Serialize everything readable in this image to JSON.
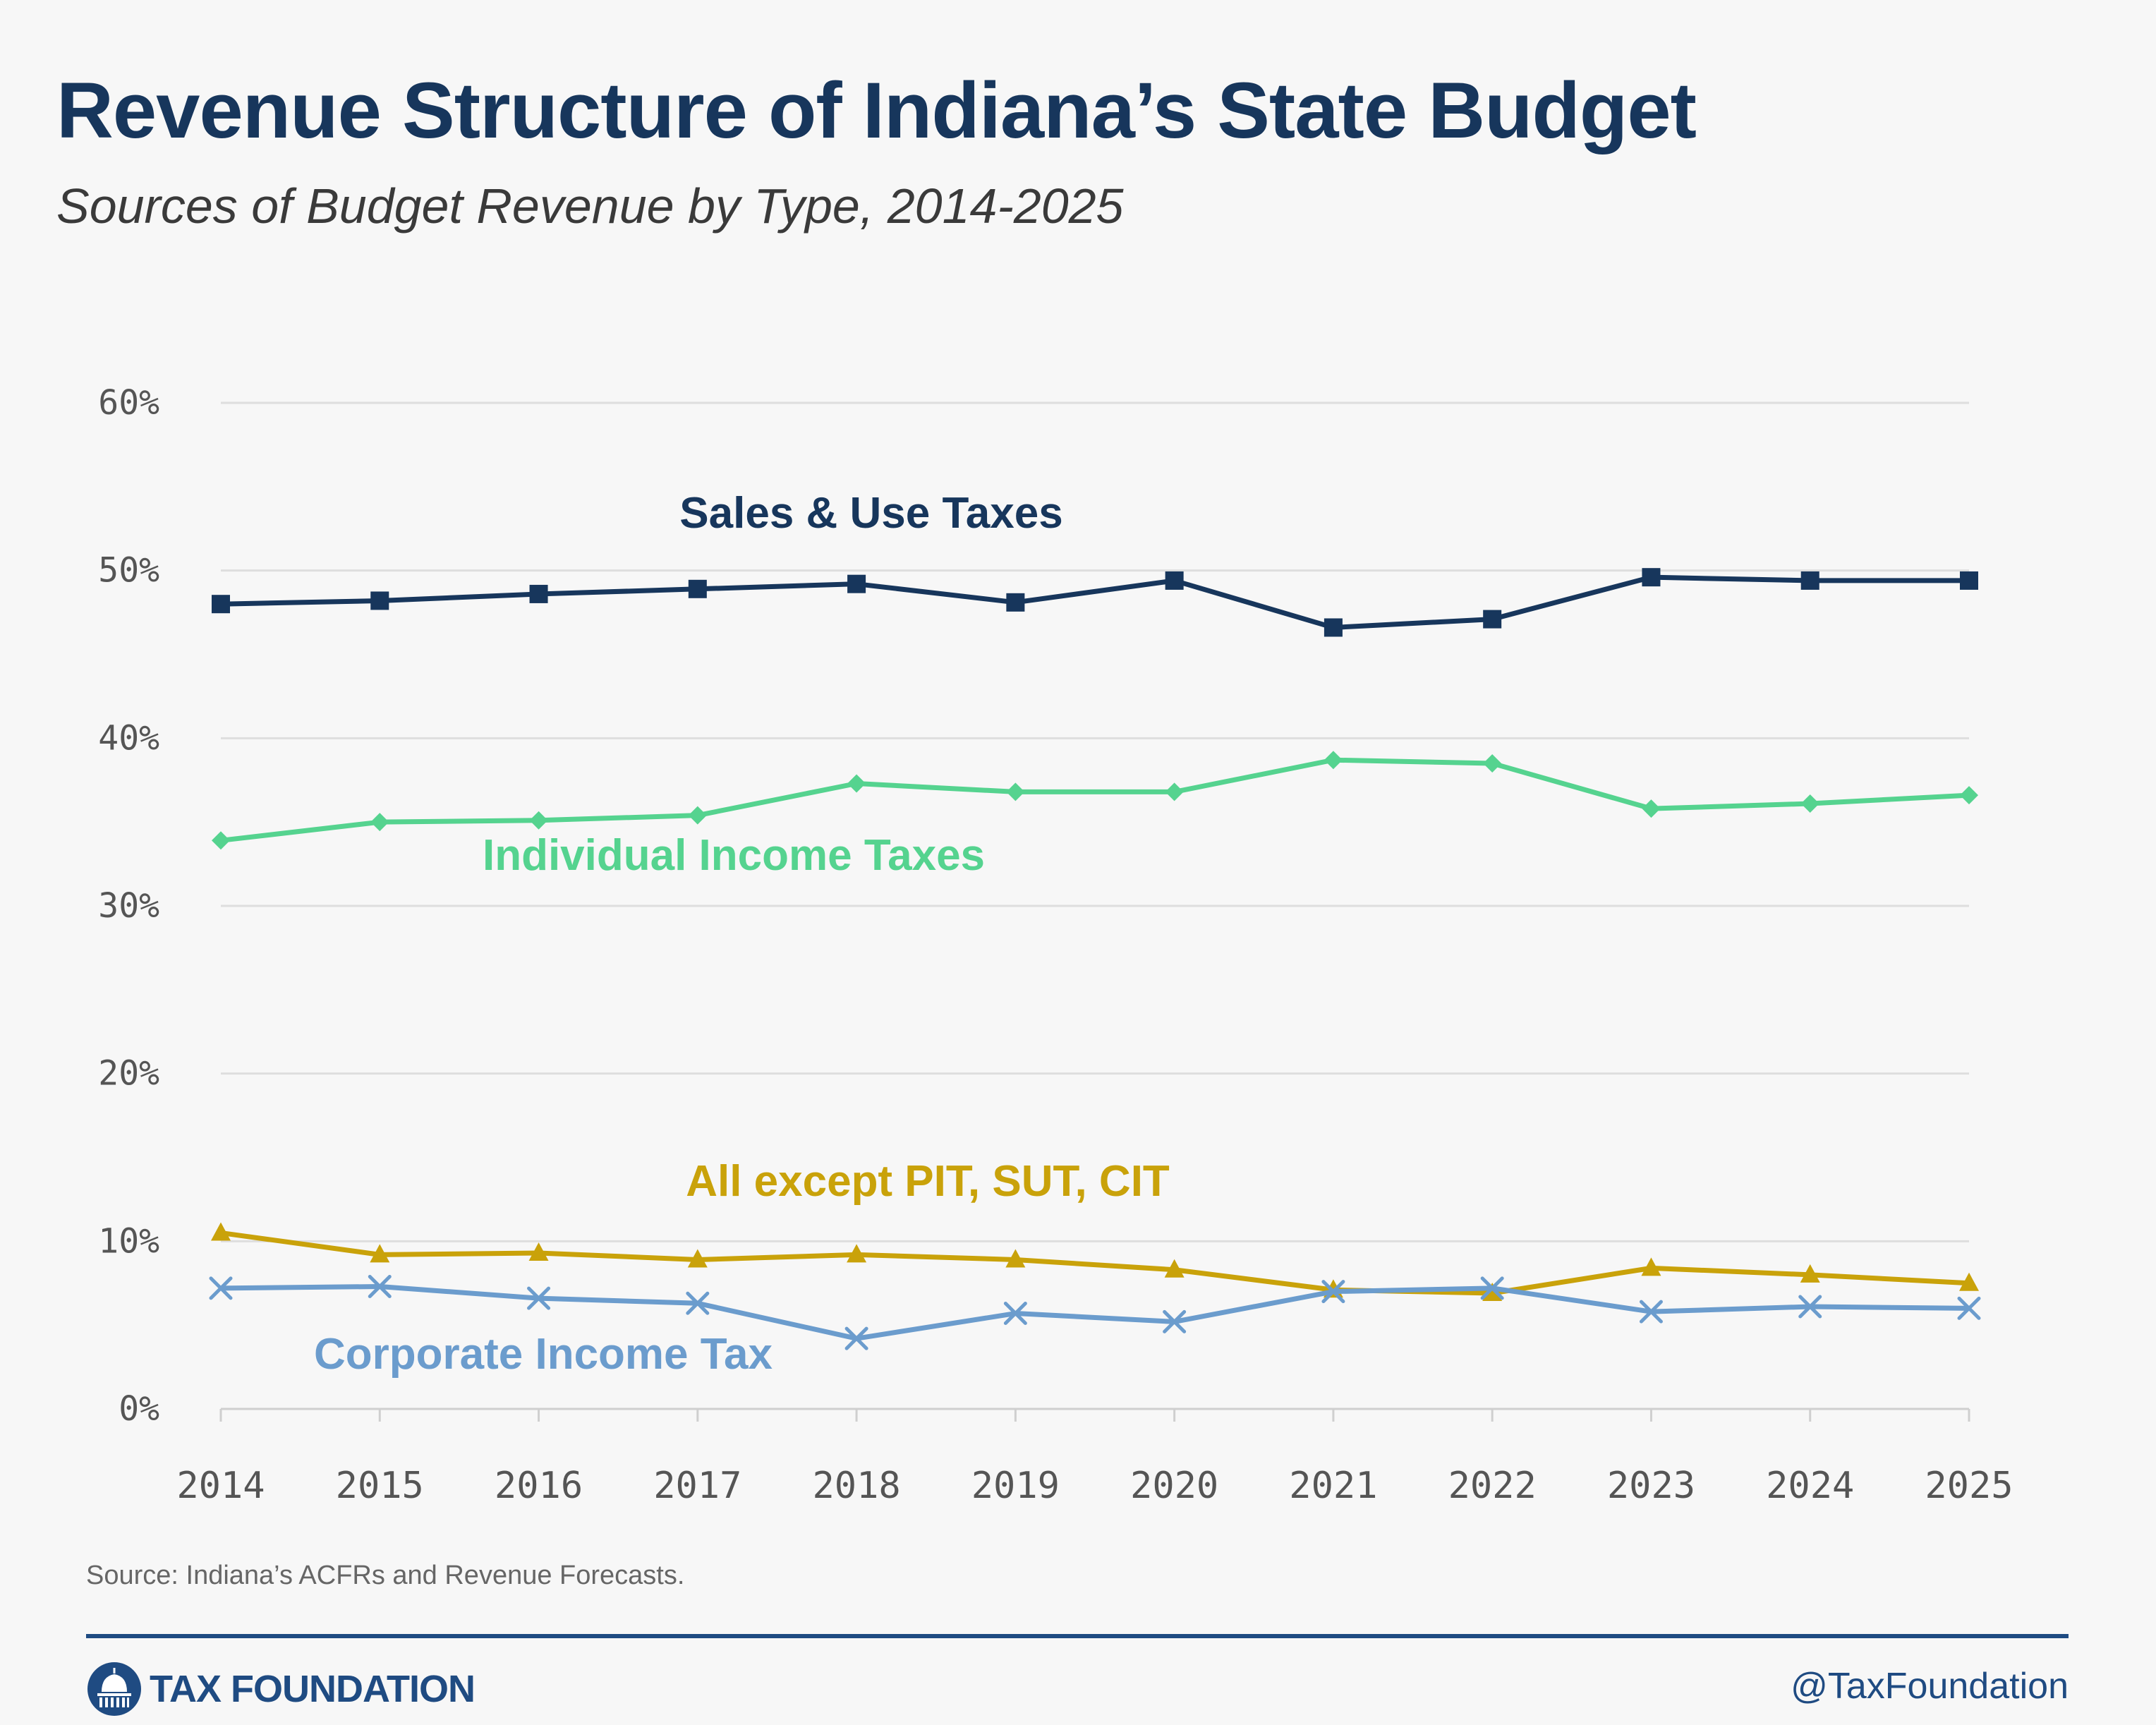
{
  "header": {
    "title": "Revenue Structure of Indiana’s State Budget",
    "subtitle": "Sources of Budget Revenue by Type, 2014-2025"
  },
  "chart_data": {
    "type": "line",
    "title": "Revenue Structure of Indiana’s State Budget",
    "subtitle": "Sources of Budget Revenue by Type, 2014-2025",
    "xlabel": "",
    "ylabel": "",
    "categories": [
      "2014",
      "2015",
      "2016",
      "2017",
      "2018",
      "2019",
      "2020",
      "2021",
      "2022",
      "2023",
      "2024",
      "2025"
    ],
    "y_ticks": [
      "0%",
      "10%",
      "20%",
      "30%",
      "40%",
      "50%",
      "60%"
    ],
    "ylim": [
      0,
      60
    ],
    "grid": true,
    "legend": "inline labels",
    "series": [
      {
        "name": "Sales & Use Taxes",
        "color": "#17365c",
        "marker": "square",
        "values": [
          48.0,
          48.2,
          48.6,
          48.9,
          49.2,
          48.1,
          49.4,
          46.6,
          47.1,
          49.6,
          49.4,
          49.4
        ]
      },
      {
        "name": "Individual Income Taxes",
        "color": "#55d38f",
        "marker": "diamond",
        "values": [
          33.9,
          35.0,
          35.1,
          35.4,
          37.3,
          36.8,
          36.8,
          38.7,
          38.5,
          35.8,
          36.1,
          36.6
        ]
      },
      {
        "name": "All except PIT, SUT, CIT",
        "color": "#c9a20a",
        "marker": "triangle",
        "values": [
          10.5,
          9.2,
          9.3,
          8.9,
          9.2,
          8.9,
          8.3,
          7.1,
          6.9,
          8.4,
          8.0,
          7.5
        ]
      },
      {
        "name": "Corporate Income Tax",
        "color": "#6b9ccd",
        "marker": "x",
        "values": [
          7.2,
          7.3,
          6.6,
          6.3,
          4.2,
          5.7,
          5.2,
          7.0,
          7.2,
          5.8,
          6.1,
          6.0
        ]
      }
    ]
  },
  "footer": {
    "source": "Source: Indiana’s ACFRs and Revenue Forecasts.",
    "brand": "TAX FOUNDATION",
    "handle": "@TaxFoundation"
  }
}
